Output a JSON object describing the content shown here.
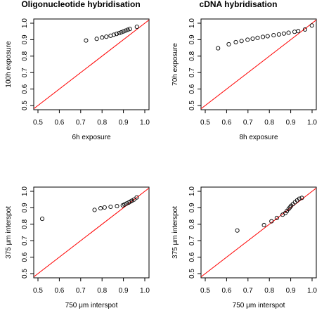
{
  "column_titles": [
    "Oligonucleotide hybridisation",
    "cDNA hybridisation"
  ],
  "chart_data": [
    {
      "type": "scatter",
      "xlabel": "6h exposure",
      "ylabel": "100h exposure",
      "xlim": [
        0.5,
        1.0
      ],
      "ylim": [
        0.5,
        1.0
      ],
      "x_ticks": [
        "0.5",
        "0.6",
        "0.7",
        "0.8",
        "0.9",
        "1.0"
      ],
      "y_ticks": [
        "0.5",
        "0.6",
        "0.7",
        "0.8",
        "0.9",
        "1.0"
      ],
      "reference_line": {
        "type": "y=x",
        "color": "#ff0000"
      },
      "grid": false,
      "points": [
        {
          "x": 0.725,
          "y": 0.895
        },
        {
          "x": 0.775,
          "y": 0.905
        },
        {
          "x": 0.8,
          "y": 0.913
        },
        {
          "x": 0.82,
          "y": 0.918
        },
        {
          "x": 0.84,
          "y": 0.924
        },
        {
          "x": 0.855,
          "y": 0.93
        },
        {
          "x": 0.868,
          "y": 0.935
        },
        {
          "x": 0.88,
          "y": 0.94
        },
        {
          "x": 0.89,
          "y": 0.945
        },
        {
          "x": 0.9,
          "y": 0.95
        },
        {
          "x": 0.91,
          "y": 0.955
        },
        {
          "x": 0.92,
          "y": 0.96
        },
        {
          "x": 0.93,
          "y": 0.965
        },
        {
          "x": 0.963,
          "y": 0.978
        }
      ]
    },
    {
      "type": "scatter",
      "xlabel": "8h exposure",
      "ylabel": "70h exposure",
      "xlim": [
        0.5,
        1.0
      ],
      "ylim": [
        0.5,
        1.0
      ],
      "x_ticks": [
        "0.5",
        "0.6",
        "0.7",
        "0.8",
        "0.9",
        "1.0"
      ],
      "y_ticks": [
        "0.5",
        "0.6",
        "0.7",
        "0.8",
        "0.9",
        "1.0"
      ],
      "reference_line": {
        "type": "y=x",
        "color": "#ff0000"
      },
      "grid": false,
      "points": [
        {
          "x": 0.56,
          "y": 0.848
        },
        {
          "x": 0.61,
          "y": 0.872
        },
        {
          "x": 0.643,
          "y": 0.885
        },
        {
          "x": 0.67,
          "y": 0.892
        },
        {
          "x": 0.698,
          "y": 0.9
        },
        {
          "x": 0.722,
          "y": 0.906
        },
        {
          "x": 0.745,
          "y": 0.911
        },
        {
          "x": 0.77,
          "y": 0.917
        },
        {
          "x": 0.792,
          "y": 0.921
        },
        {
          "x": 0.82,
          "y": 0.927
        },
        {
          "x": 0.845,
          "y": 0.932
        },
        {
          "x": 0.868,
          "y": 0.937
        },
        {
          "x": 0.89,
          "y": 0.942
        },
        {
          "x": 0.918,
          "y": 0.948
        },
        {
          "x": 0.935,
          "y": 0.952
        },
        {
          "x": 0.967,
          "y": 0.962
        },
        {
          "x": 0.999,
          "y": 0.986
        }
      ]
    },
    {
      "type": "scatter",
      "xlabel": "750 μm interspot",
      "ylabel": "375 μm interspot",
      "xlim": [
        0.5,
        1.0
      ],
      "ylim": [
        0.5,
        1.0
      ],
      "x_ticks": [
        "0.5",
        "0.6",
        "0.7",
        "0.8",
        "0.9",
        "1.0"
      ],
      "y_ticks": [
        "0.5",
        "0.6",
        "0.7",
        "0.8",
        "0.9",
        "1.0"
      ],
      "reference_line": {
        "type": "y=x",
        "color": "#ff0000"
      },
      "grid": false,
      "points": [
        {
          "x": 0.52,
          "y": 0.833
        },
        {
          "x": 0.765,
          "y": 0.887
        },
        {
          "x": 0.793,
          "y": 0.897
        },
        {
          "x": 0.812,
          "y": 0.902
        },
        {
          "x": 0.84,
          "y": 0.906
        },
        {
          "x": 0.87,
          "y": 0.91
        },
        {
          "x": 0.897,
          "y": 0.915
        },
        {
          "x": 0.905,
          "y": 0.92
        },
        {
          "x": 0.915,
          "y": 0.926
        },
        {
          "x": 0.925,
          "y": 0.932
        },
        {
          "x": 0.933,
          "y": 0.938
        },
        {
          "x": 0.94,
          "y": 0.943
        },
        {
          "x": 0.95,
          "y": 0.95
        },
        {
          "x": 0.962,
          "y": 0.963
        }
      ]
    },
    {
      "type": "scatter",
      "xlabel": "750 μm interspot",
      "ylabel": "375 μm interspot",
      "xlim": [
        0.5,
        1.0
      ],
      "ylim": [
        0.5,
        1.0
      ],
      "x_ticks": [
        "0.5",
        "0.6",
        "0.7",
        "0.8",
        "0.9",
        "1.0"
      ],
      "y_ticks": [
        "0.5",
        "0.6",
        "0.7",
        "0.8",
        "0.9",
        "1.0"
      ],
      "reference_line": {
        "type": "y=x",
        "color": "#ff0000"
      },
      "grid": false,
      "points": [
        {
          "x": 0.65,
          "y": 0.762
        },
        {
          "x": 0.775,
          "y": 0.795
        },
        {
          "x": 0.81,
          "y": 0.818
        },
        {
          "x": 0.835,
          "y": 0.838
        },
        {
          "x": 0.862,
          "y": 0.858
        },
        {
          "x": 0.875,
          "y": 0.868
        },
        {
          "x": 0.882,
          "y": 0.88
        },
        {
          "x": 0.89,
          "y": 0.892
        },
        {
          "x": 0.896,
          "y": 0.902
        },
        {
          "x": 0.902,
          "y": 0.912
        },
        {
          "x": 0.91,
          "y": 0.922
        },
        {
          "x": 0.92,
          "y": 0.934
        },
        {
          "x": 0.93,
          "y": 0.945
        },
        {
          "x": 0.94,
          "y": 0.955
        },
        {
          "x": 0.952,
          "y": 0.96
        }
      ]
    }
  ]
}
